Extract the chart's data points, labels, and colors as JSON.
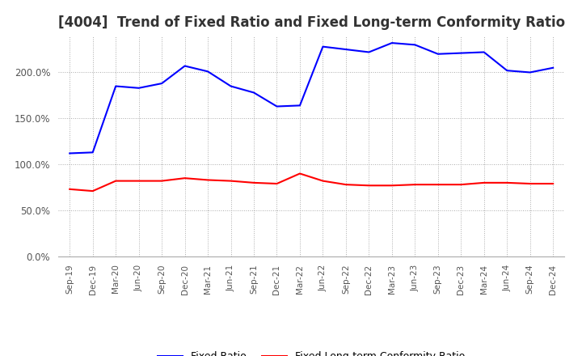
{
  "title": "[4004]  Trend of Fixed Ratio and Fixed Long-term Conformity Ratio",
  "title_fontsize": 12,
  "background_color": "#ffffff",
  "grid_color": "#aaaaaa",
  "x_labels": [
    "Sep-19",
    "Dec-19",
    "Mar-20",
    "Jun-20",
    "Sep-20",
    "Dec-20",
    "Mar-21",
    "Jun-21",
    "Sep-21",
    "Dec-21",
    "Mar-22",
    "Jun-22",
    "Sep-22",
    "Dec-22",
    "Mar-23",
    "Jun-23",
    "Sep-23",
    "Dec-23",
    "Mar-24",
    "Jun-24",
    "Sep-24",
    "Dec-24"
  ],
  "fixed_ratio": [
    112,
    113,
    185,
    183,
    188,
    207,
    201,
    185,
    178,
    163,
    164,
    228,
    225,
    222,
    232,
    230,
    220,
    221,
    222,
    202,
    200,
    205
  ],
  "fixed_lt_ratio": [
    73,
    71,
    82,
    82,
    82,
    85,
    83,
    82,
    80,
    79,
    90,
    82,
    78,
    77,
    77,
    78,
    78,
    78,
    80,
    80,
    79,
    79
  ],
  "fixed_ratio_color": "#0000ff",
  "fixed_lt_ratio_color": "#ff0000",
  "fixed_ratio_label": "Fixed Ratio",
  "fixed_lt_ratio_label": "Fixed Long-term Conformity Ratio",
  "ylim": [
    0,
    240
  ],
  "yticks": [
    0,
    50,
    100,
    150,
    200
  ],
  "line_width": 1.5
}
